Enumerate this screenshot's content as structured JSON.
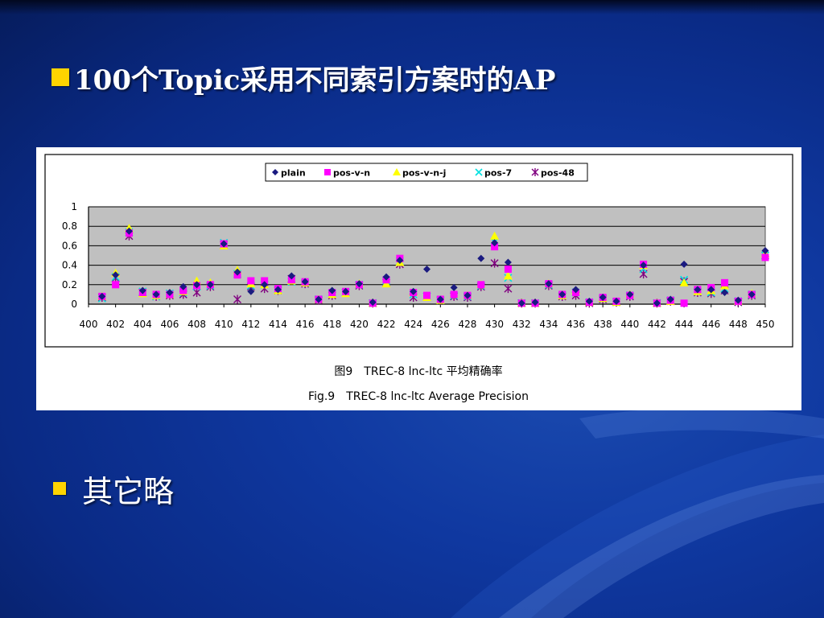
{
  "slide": {
    "title": "100个Topic采用不同索引方案时的AP",
    "bullets": [
      "其它略"
    ]
  },
  "colors": {
    "background": "#0f38a0",
    "bullet": "#ffd400",
    "plot_area": "#c0c0c0",
    "plain": "#1a1a80",
    "pos-v-n": "#ff00ff",
    "pos-v-n-j": "#ffff00",
    "pos-7": "#00e0e0",
    "pos-48": "#800080"
  },
  "chart_data": {
    "type": "scatter",
    "title": "",
    "caption_cn": "图9　TREC-8 lnc-ltc 平均精确率",
    "caption_en": "Fig.9　TREC-8 lnc-ltc Average Precision",
    "xlabel": "",
    "ylabel": "",
    "xlim": [
      400,
      450
    ],
    "ylim": [
      0,
      1
    ],
    "x_ticks": [
      400,
      402,
      404,
      406,
      408,
      410,
      412,
      414,
      416,
      418,
      420,
      422,
      424,
      426,
      428,
      430,
      432,
      434,
      436,
      438,
      440,
      442,
      444,
      446,
      448,
      450
    ],
    "y_ticks": [
      "0",
      "0.2",
      "0.4",
      "0.6",
      "0.8",
      "1"
    ],
    "y_tick_values": [
      0,
      0.2,
      0.4,
      0.6,
      0.8,
      1
    ],
    "grid": true,
    "legend_position": "top",
    "x": [
      401,
      402,
      403,
      404,
      405,
      406,
      407,
      408,
      409,
      410,
      411,
      412,
      413,
      414,
      415,
      416,
      417,
      418,
      419,
      420,
      421,
      422,
      423,
      424,
      425,
      426,
      427,
      428,
      429,
      430,
      431,
      432,
      433,
      434,
      435,
      436,
      437,
      438,
      439,
      440,
      441,
      442,
      443,
      444,
      445,
      446,
      447,
      448,
      449,
      450
    ],
    "series": [
      {
        "name": "plain",
        "marker": "diamond",
        "values": [
          0.08,
          0.3,
          0.75,
          0.14,
          0.1,
          0.12,
          0.18,
          0.2,
          0.2,
          0.62,
          0.33,
          0.13,
          0.2,
          0.15,
          0.29,
          0.23,
          0.05,
          0.14,
          0.13,
          0.21,
          0.02,
          0.28,
          0.45,
          0.13,
          0.36,
          0.05,
          0.17,
          0.09,
          0.47,
          0.63,
          0.43,
          0.01,
          0.02,
          0.21,
          0.1,
          0.15,
          0.03,
          0.07,
          0.03,
          0.1,
          0.4,
          0.01,
          0.05,
          0.41,
          0.15,
          0.15,
          0.12,
          0.04,
          0.1,
          0.55
        ]
      },
      {
        "name": "pos-v-n",
        "marker": "square",
        "values": [
          0.08,
          0.2,
          0.73,
          0.12,
          0.1,
          0.1,
          0.14,
          0.19,
          0.2,
          0.62,
          0.3,
          0.24,
          0.24,
          0.16,
          0.25,
          0.23,
          0.05,
          0.12,
          0.13,
          0.2,
          0.01,
          0.25,
          0.47,
          0.12,
          0.09,
          0.05,
          0.1,
          0.09,
          0.2,
          0.59,
          0.36,
          0.01,
          0.01,
          0.21,
          0.1,
          0.12,
          0.02,
          0.07,
          0.03,
          0.09,
          0.41,
          0.01,
          0.04,
          0.01,
          0.15,
          0.17,
          0.22,
          0.03,
          0.1,
          0.48
        ]
      },
      {
        "name": "pos-v-n-j",
        "marker": "triangle",
        "values": [
          0.08,
          0.32,
          0.78,
          0.11,
          0.09,
          0.1,
          0.13,
          0.24,
          0.22,
          0.6,
          0.35,
          0.21,
          0.2,
          0.14,
          0.24,
          0.22,
          0.05,
          0.1,
          0.11,
          0.21,
          0.01,
          0.21,
          0.43,
          0.12,
          0.07,
          0.04,
          0.1,
          0.09,
          0.2,
          0.7,
          0.29,
          0.01,
          0.01,
          0.21,
          0.09,
          0.14,
          0.02,
          0.06,
          0.02,
          0.1,
          0.4,
          0.01,
          0.03,
          0.22,
          0.13,
          0.14,
          0.19,
          0.03,
          0.11,
          0.52
        ]
      },
      {
        "name": "pos-7",
        "marker": "x",
        "values": [
          0.06,
          0.28,
          0.74,
          0.13,
          0.08,
          0.11,
          0.12,
          0.18,
          0.19,
          0.63,
          0.31,
          0.19,
          0.2,
          0.15,
          0.23,
          0.22,
          0.05,
          0.11,
          0.12,
          0.2,
          0.01,
          0.24,
          0.44,
          0.1,
          0.08,
          0.04,
          0.09,
          0.08,
          0.19,
          0.64,
          0.27,
          0.01,
          0.01,
          0.2,
          0.09,
          0.12,
          0.02,
          0.06,
          0.02,
          0.09,
          0.36,
          0.01,
          0.04,
          0.25,
          0.13,
          0.12,
          0.16,
          0.03,
          0.1,
          0.5
        ]
      },
      {
        "name": "pos-48",
        "marker": "star",
        "values": [
          0.07,
          0.27,
          0.7,
          0.12,
          0.08,
          0.09,
          0.1,
          0.12,
          0.18,
          0.61,
          0.05,
          0.18,
          0.16,
          0.14,
          0.26,
          0.21,
          0.04,
          0.09,
          0.12,
          0.19,
          0.01,
          0.22,
          0.41,
          0.07,
          0.08,
          0.04,
          0.08,
          0.07,
          0.18,
          0.42,
          0.16,
          0.01,
          0.01,
          0.19,
          0.08,
          0.09,
          0.01,
          0.05,
          0.02,
          0.08,
          0.31,
          0.01,
          0.03,
          0.23,
          0.12,
          0.11,
          0.14,
          0.02,
          0.09,
          0.5
        ]
      }
    ]
  }
}
